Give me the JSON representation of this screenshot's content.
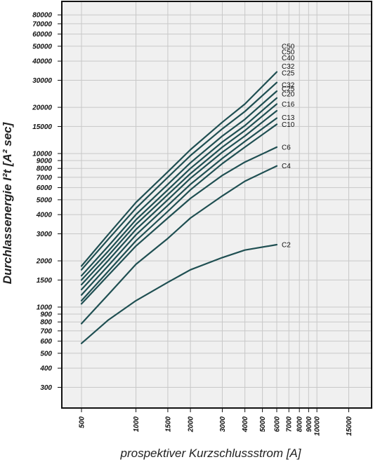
{
  "chart_data": {
    "type": "line",
    "title": "",
    "xlabel": "prospektiver Kurzschlussstrom [A]",
    "ylabel": "Durchlassenergie I²t [A² sec]",
    "xscale": "log",
    "yscale": "log",
    "xlim": [
      450,
      20000
    ],
    "ylim": [
      200,
      100000
    ],
    "x_ticks": [
      "500",
      "1000",
      "1500",
      "2000",
      "3000",
      "4000",
      "5000",
      "6000",
      "7000",
      "8000",
      "9000",
      "10000",
      "15000"
    ],
    "y_ticks": [
      "300",
      "400",
      "500",
      "600",
      "700",
      "800",
      "900",
      "1000",
      "1500",
      "2000",
      "3000",
      "4000",
      "5000",
      "6000",
      "7000",
      "8000",
      "9000",
      "10000",
      "15000",
      "20000",
      "30000",
      "40000",
      "50000",
      "60000",
      "70000",
      "80000"
    ],
    "grid": true,
    "colors": {
      "line": "#1f4f52",
      "plot_bg": "#f0f0f0",
      "grid": "#c8c8c8"
    },
    "x": [
      500,
      700,
      1000,
      1500,
      2000,
      3000,
      4000,
      6000
    ],
    "series": [
      {
        "name": "C2",
        "values": [
          580,
          820,
          1100,
          1450,
          1750,
          2100,
          2350,
          2550
        ]
      },
      {
        "name": "C4",
        "values": [
          780,
          1200,
          1900,
          2800,
          3800,
          5300,
          6600,
          8300
        ]
      },
      {
        "name": "C6",
        "values": [
          1050,
          1600,
          2500,
          3800,
          5100,
          7200,
          8800,
          11000
        ]
      },
      {
        "name": "C10",
        "values": [
          1100,
          1700,
          2700,
          4200,
          5800,
          8600,
          11000,
          15500
        ]
      },
      {
        "name": "C13",
        "values": [
          1200,
          1850,
          2950,
          4600,
          6300,
          9300,
          12000,
          17000
        ]
      },
      {
        "name": "C16",
        "values": [
          1300,
          2000,
          3200,
          5000,
          6900,
          10200,
          13000,
          19000
        ]
      },
      {
        "name": "C20",
        "values": [
          1400,
          2150,
          3450,
          5400,
          7400,
          11000,
          14100,
          21000
        ]
      },
      {
        "name": "C25",
        "values": [
          1500,
          2300,
          3700,
          5800,
          8000,
          11900,
          15200,
          23000
        ]
      },
      {
        "name": "C32",
        "values": [
          1600,
          2480,
          4000,
          6300,
          8700,
          13000,
          16700,
          25500
        ]
      },
      {
        "name": "C40",
        "values": [
          1750,
          2750,
          4400,
          7000,
          9700,
          14500,
          18800,
          29000
        ]
      },
      {
        "name": "C50",
        "values": [
          1850,
          2950,
          4800,
          7600,
          10600,
          16000,
          21000,
          34000
        ]
      }
    ],
    "curve_labels": [
      {
        "text": "C2",
        "y_value": 2550
      },
      {
        "text": "C4",
        "y_value": 8300
      },
      {
        "text": "C6",
        "y_value": 11000
      },
      {
        "text": "C10",
        "y_value": 15500
      },
      {
        "text": "C13",
        "y_value": 17200
      },
      {
        "text": "C16",
        "y_value": 21000
      },
      {
        "text": "C20",
        "y_value": 24500
      },
      {
        "text": "C25",
        "y_value": 26500
      },
      {
        "text": "C32",
        "y_value": 28000
      },
      {
        "text": "C25",
        "y_value": 33500
      },
      {
        "text": "C32",
        "y_value": 37000
      },
      {
        "text": "C40",
        "y_value": 42000
      },
      {
        "text": "C50",
        "y_value": 46000
      },
      {
        "text": "C50",
        "y_value": 50000
      }
    ]
  }
}
